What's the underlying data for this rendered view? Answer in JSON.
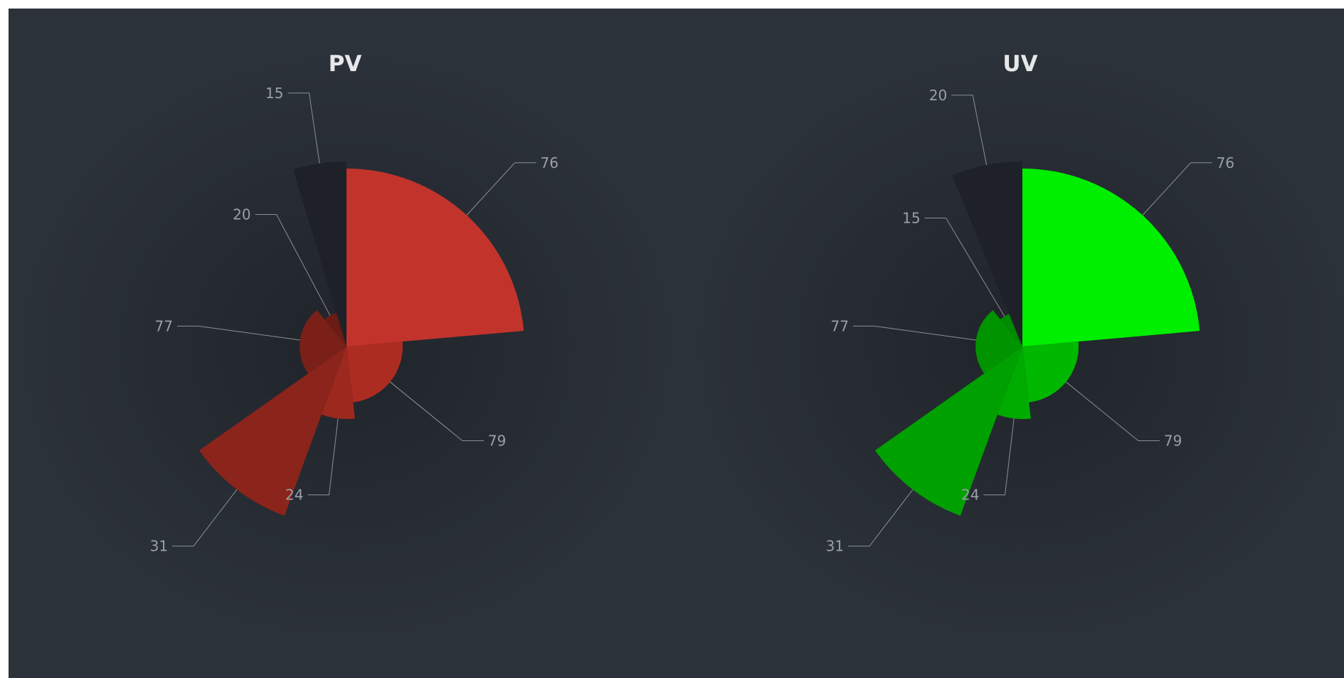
{
  "colors": {
    "panel_bg": "#2c323a",
    "panel_glow": "#22262d",
    "title": "#e6e7e9",
    "label": "#9aa0a6",
    "line": "#8a9098"
  },
  "chart_data": [
    {
      "type": "pie",
      "variant": "rose",
      "title": "PV",
      "start_angle_deg": 90,
      "clockwise": false,
      "max_value": 79,
      "slices": [
        {
          "value": 15,
          "radius": 79,
          "color": "#1e2228"
        },
        {
          "value": 20,
          "radius": 15,
          "color": "#6a1b14"
        },
        {
          "value": 77,
          "radius": 20,
          "color": "#7a2018"
        },
        {
          "value": 31,
          "radius": 77,
          "color": "#8b241b"
        },
        {
          "value": 24,
          "radius": 31,
          "color": "#9c281e"
        },
        {
          "value": 79,
          "radius": 24,
          "color": "#ad2c22"
        },
        {
          "value": 76,
          "radius": 76,
          "color": "#c2342b"
        }
      ]
    },
    {
      "type": "pie",
      "variant": "rose",
      "title": "UV",
      "start_angle_deg": 90,
      "clockwise": false,
      "max_value": 79,
      "slices": [
        {
          "value": 20,
          "radius": 79,
          "color": "#1e2228"
        },
        {
          "value": 15,
          "radius": 15,
          "color": "#008a00"
        },
        {
          "value": 77,
          "radius": 20,
          "color": "#009400"
        },
        {
          "value": 31,
          "radius": 77,
          "color": "#00a000"
        },
        {
          "value": 24,
          "radius": 31,
          "color": "#00ab00"
        },
        {
          "value": 79,
          "radius": 24,
          "color": "#00b800"
        },
        {
          "value": 76,
          "radius": 76,
          "color": "#00ee00"
        }
      ]
    }
  ]
}
